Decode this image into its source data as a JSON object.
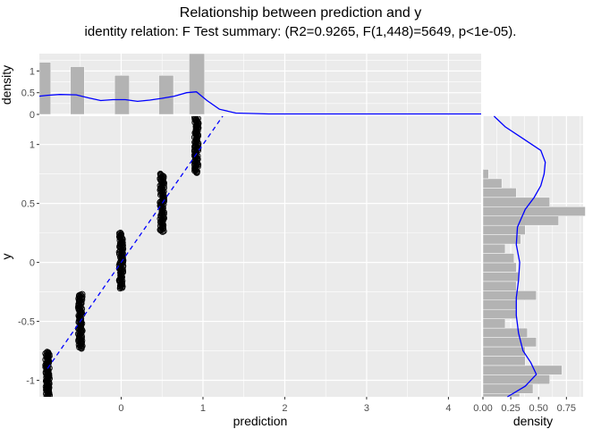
{
  "chart_data": {
    "type": "scatter",
    "title": "Relationship between prediction and y",
    "subtitle": "identity relation: F Test summary: (R2=0.9265, F(1,448)=5649, p<1e-05).",
    "xlabel": "prediction",
    "ylabel": "y",
    "xlim": [
      -1.0,
      4.4
    ],
    "ylim": [
      -1.14,
      1.24
    ],
    "x_ticks": [
      0,
      1,
      2,
      3,
      4
    ],
    "x_tick_labels": [
      "0",
      "1",
      "2",
      "3",
      "4"
    ],
    "y_ticks": [
      -1,
      -0.5,
      0,
      0.5,
      1
    ],
    "y_tick_labels": [
      "-1",
      "-0.5",
      "0",
      "0.5",
      "1"
    ],
    "grid": true,
    "clusters": [
      {
        "x": -0.9,
        "y_min": -1.14,
        "y_max": -0.76
      },
      {
        "x": -0.5,
        "y_min": -0.73,
        "y_max": -0.27
      },
      {
        "x": 0.0,
        "y_min": -0.22,
        "y_max": 0.25
      },
      {
        "x": 0.5,
        "y_min": 0.26,
        "y_max": 0.75
      },
      {
        "x": 0.92,
        "y_min": 0.76,
        "y_max": 1.23
      }
    ],
    "reference_line": {
      "style": "dashed",
      "color": "#0000ff",
      "slope": 1,
      "intercept": 0,
      "x_start": -0.9,
      "x_end": 1.27
    },
    "point_color": "#000000",
    "top_marginal": {
      "ylabel": "density",
      "ylim": [
        0,
        1.4
      ],
      "y_ticks": [
        0,
        0.5,
        1
      ],
      "y_tick_labels": [
        "0",
        "0.5",
        "1"
      ],
      "bars": [
        {
          "x_min": -1.0,
          "x_max": -0.86,
          "density": 1.2
        },
        {
          "x_min": -0.62,
          "x_max": -0.45,
          "density": 1.1
        },
        {
          "x_min": -0.08,
          "x_max": 0.1,
          "density": 0.9
        },
        {
          "x_min": 0.46,
          "x_max": 0.64,
          "density": 0.9
        },
        {
          "x_min": 0.83,
          "x_max": 1.02,
          "density": 1.4
        }
      ],
      "density_curve": {
        "color": "#0000ff",
        "x": [
          -1.0,
          -0.9,
          -0.75,
          -0.55,
          -0.4,
          -0.25,
          -0.1,
          0.05,
          0.2,
          0.35,
          0.5,
          0.65,
          0.8,
          0.92,
          1.05,
          1.2,
          1.4,
          1.8,
          2.5,
          3.5,
          4.4
        ],
        "y": [
          0.42,
          0.44,
          0.46,
          0.45,
          0.38,
          0.32,
          0.34,
          0.34,
          0.3,
          0.33,
          0.37,
          0.42,
          0.5,
          0.52,
          0.32,
          0.12,
          0.03,
          0.01,
          0.01,
          0.01,
          0.01
        ]
      }
    },
    "right_marginal": {
      "xlabel": "density",
      "xlim": [
        0,
        0.9
      ],
      "x_ticks": [
        0,
        0.25,
        0.5,
        0.75
      ],
      "x_tick_labels": [
        "0.00",
        "0.25",
        "0.50",
        "0.75"
      ],
      "bin_width": 0.0792,
      "bins_y_start": -1.27,
      "bar_densities": [
        0.12,
        0.33,
        0.45,
        0.6,
        0.71,
        0.38,
        0.38,
        0.48,
        0.4,
        0.2,
        0.3,
        0.3,
        0.48,
        0.3,
        0.32,
        0.3,
        0.28,
        0.2,
        0.34,
        0.38,
        0.68,
        0.92,
        0.6,
        0.3,
        0.17,
        0.05
      ],
      "density_curve": {
        "color": "#0000ff",
        "y": [
          -1.14,
          -1.05,
          -0.95,
          -0.85,
          -0.75,
          -0.6,
          -0.45,
          -0.3,
          -0.15,
          0.0,
          0.15,
          0.3,
          0.45,
          0.55,
          0.65,
          0.75,
          0.85,
          0.95,
          1.05,
          1.15,
          1.24
        ],
        "density": [
          0.22,
          0.38,
          0.48,
          0.43,
          0.36,
          0.32,
          0.3,
          0.3,
          0.32,
          0.33,
          0.3,
          0.31,
          0.38,
          0.46,
          0.52,
          0.55,
          0.56,
          0.52,
          0.36,
          0.2,
          0.1
        ]
      }
    }
  }
}
